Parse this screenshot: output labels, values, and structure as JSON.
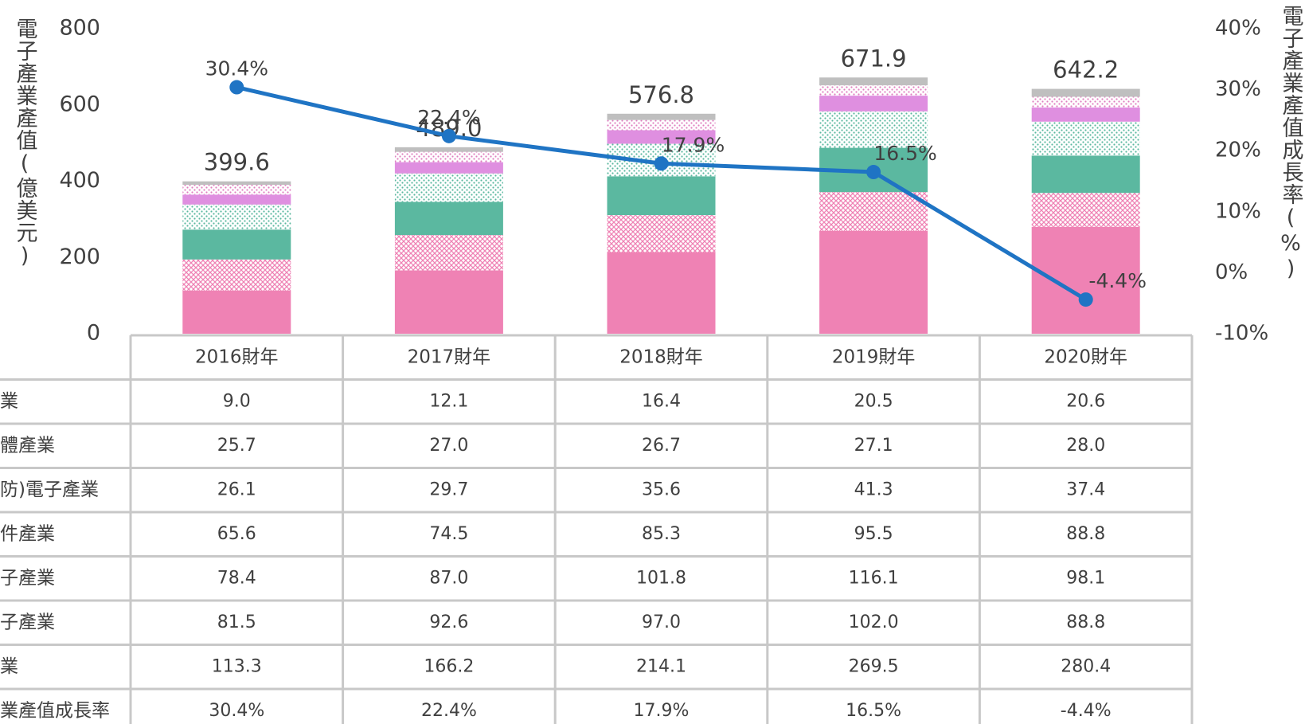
{
  "chart_data": {
    "type": "bar",
    "categories": [
      "2016財年",
      "2017財年",
      "2018財年",
      "2019財年",
      "2020財年"
    ],
    "series": [
      {
        "name": "業",
        "color": "#bfbfbf",
        "pattern": "solid",
        "values": [
          9.0,
          12.1,
          16.4,
          20.5,
          20.6
        ],
        "value_labels": [
          "9.0",
          "12.1",
          "16.4",
          "20.5",
          "20.6"
        ]
      },
      {
        "name": "體產業",
        "color": "#e07fc0",
        "pattern": "dots",
        "values": [
          25.7,
          27.0,
          26.7,
          27.1,
          28.0
        ],
        "value_labels": [
          "25.7",
          "27.0",
          "26.7",
          "27.1",
          "28.0"
        ]
      },
      {
        "name": "防)電子產業",
        "color": "#df8fe0",
        "pattern": "solid",
        "values": [
          26.1,
          29.7,
          35.6,
          41.3,
          37.4
        ],
        "value_labels": [
          "26.1",
          "29.7",
          "35.6",
          "41.3",
          "37.4"
        ]
      },
      {
        "name": "件產業",
        "color": "#5bb8a0",
        "pattern": "dots",
        "values": [
          65.6,
          74.5,
          85.3,
          95.5,
          88.8
        ],
        "value_labels": [
          "65.6",
          "74.5",
          "85.3",
          "95.5",
          "88.8"
        ]
      },
      {
        "name": "子產業",
        "color": "#5bb8a0",
        "pattern": "solid",
        "values": [
          78.4,
          87.0,
          101.8,
          116.1,
          98.1
        ],
        "value_labels": [
          "78.4",
          "87.0",
          "101.8",
          "116.1",
          "98.1"
        ]
      },
      {
        "name": "子產業",
        "color": "#ef82b4",
        "pattern": "crosshatch",
        "values": [
          81.5,
          92.6,
          97.0,
          102.0,
          88.8
        ],
        "value_labels": [
          "81.5",
          "92.6",
          "97.0",
          "102.0",
          "88.8"
        ]
      },
      {
        "name": "業",
        "color": "#ef82b4",
        "pattern": "solid",
        "values": [
          113.3,
          166.2,
          214.1,
          269.5,
          280.4
        ],
        "value_labels": [
          "113.3",
          "166.2",
          "214.1",
          "269.5",
          "280.4"
        ]
      }
    ],
    "totals": {
      "values": [
        399.6,
        489.0,
        576.8,
        671.9,
        642.2
      ],
      "value_labels": [
        "399.6",
        "489.0",
        "576.8",
        "671.9",
        "642.2"
      ]
    },
    "line": {
      "name": "業產值成長率",
      "color": "#1f74c4",
      "axis": "y2",
      "values": [
        30.4,
        22.4,
        17.9,
        16.5,
        -4.4
      ],
      "value_labels": [
        "30.4%",
        "22.4%",
        "17.9%",
        "16.5%",
        "-4.4%"
      ]
    },
    "y_label": "電子產業產值(億美元)",
    "y2_label": "電子產業產值成長率(%)",
    "ylim": [
      0,
      800
    ],
    "yticks": [
      0,
      200,
      400,
      600,
      800
    ],
    "y2lim": [
      -10,
      40
    ],
    "y2ticks": [
      {
        "value": -10,
        "label": "-10%"
      },
      {
        "value": 0,
        "label": "0%"
      },
      {
        "value": 10,
        "label": "10%"
      },
      {
        "value": 20,
        "label": "20%"
      },
      {
        "value": 30,
        "label": "30%"
      },
      {
        "value": 40,
        "label": "40%"
      }
    ]
  }
}
